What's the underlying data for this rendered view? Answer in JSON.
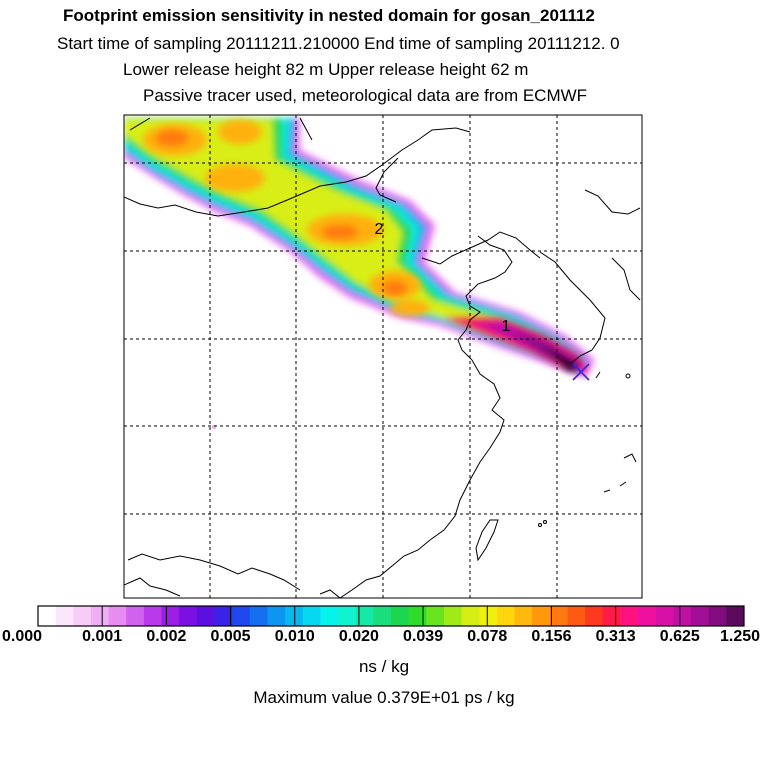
{
  "header": {
    "title": "Footprint emission sensitivity in nested domain for gosan_201112",
    "sampling": "Start time of sampling 20111211.210000      End time of sampling 20111212.     0",
    "heights": "Lower release height   82 m          Upper release height   62 m",
    "note": "Passive tracer used, meteorological data are from ECMWF"
  },
  "map": {
    "labels": [
      "2",
      "1"
    ],
    "release_marker": "release-site-cross"
  },
  "colorbar": {
    "ticks": [
      "0.000",
      "0.001",
      "0.002",
      "0.005",
      "0.010",
      "0.020",
      "0.039",
      "0.078",
      "0.156",
      "0.313",
      "0.625",
      "1.250"
    ],
    "colors": [
      "#ffffff",
      "#fbe6fb",
      "#f7ccf7",
      "#f0aff5",
      "#e88cf0",
      "#d062ee",
      "#b83aea",
      "#9c1ee6",
      "#7a10e4",
      "#5b10e0",
      "#3a22e6",
      "#2048ee",
      "#1470ee",
      "#0d96ef",
      "#08b8f0",
      "#05d8f0",
      "#06f2ec",
      "#10f2d0",
      "#16e8a8",
      "#1ade7c",
      "#1cd650",
      "#30dc2a",
      "#68e420",
      "#a0ea18",
      "#d4ee14",
      "#f0f010",
      "#ffd60e",
      "#ffb80c",
      "#ff980c",
      "#ff7a10",
      "#ff5a14",
      "#ff3820",
      "#ff1a4a",
      "#ff1280",
      "#f010a0",
      "#d810a8",
      "#c010a4",
      "#a20e96",
      "#800c80",
      "#5c0a5c"
    ],
    "unit": "ns / kg",
    "max_value": "Maximum value  0.379E+01 ps / kg"
  }
}
